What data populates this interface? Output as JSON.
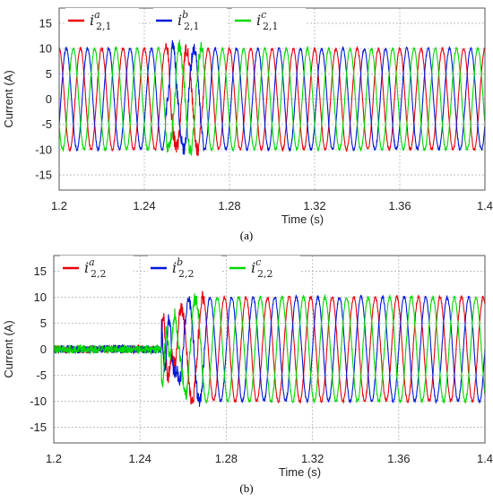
{
  "colors": {
    "a": "#e8000b",
    "b": "#0018d8",
    "c": "#00d800"
  },
  "chart_data": [
    {
      "type": "line",
      "caption": "(a)",
      "xlabel": "Time (s)",
      "ylabel": "Current (A)",
      "xlim": [
        1.2,
        1.4
      ],
      "ylim": [
        -18,
        18
      ],
      "x_ticks": [
        "1.2",
        "1.24",
        "1.28",
        "1.32",
        "1.36",
        "1.4"
      ],
      "y_ticks": [
        "15",
        "10",
        "5",
        "0",
        "-5",
        "-10",
        "-15"
      ],
      "grid": true,
      "legend_position": "top",
      "series": [
        {
          "key": "a",
          "name": "i",
          "sup": "a",
          "sub": "2,1",
          "frequency_hz": 100,
          "amplitude_before": 10,
          "amplitude_after": 10,
          "phase_deg": 90,
          "noise_before": 0.3,
          "noise_after": 0.3
        },
        {
          "key": "b",
          "name": "i",
          "sup": "b",
          "sub": "2,1",
          "frequency_hz": 100,
          "amplitude_before": 10,
          "amplitude_after": 10,
          "phase_deg": -30,
          "noise_before": 0.3,
          "noise_after": 0.3
        },
        {
          "key": "c",
          "name": "i",
          "sup": "c",
          "sub": "2,1",
          "frequency_hz": 100,
          "amplitude_before": 10,
          "amplitude_after": 10,
          "phase_deg": 210,
          "noise_before": 0.3,
          "noise_after": 0.3
        }
      ],
      "transient": {
        "start": 1.25,
        "end": 1.268,
        "peak": 14
      }
    },
    {
      "type": "line",
      "caption": "(b)",
      "xlabel": "Time (s)",
      "ylabel": "Current (A)",
      "xlim": [
        1.2,
        1.4
      ],
      "ylim": [
        -18,
        18
      ],
      "x_ticks": [
        "1.2",
        "1.24",
        "1.28",
        "1.32",
        "1.36",
        "1.4"
      ],
      "y_ticks": [
        "15",
        "10",
        "5",
        "0",
        "-5",
        "-10",
        "-15"
      ],
      "grid": true,
      "legend_position": "top",
      "series": [
        {
          "key": "a",
          "name": "i",
          "sup": "a",
          "sub": "2,2",
          "frequency_hz": 100,
          "amplitude_before": 0,
          "amplitude_after": 10,
          "phase_deg": 120,
          "noise_before": 0.8,
          "noise_after": 0.35
        },
        {
          "key": "b",
          "name": "i",
          "sup": "b",
          "sub": "2,2",
          "frequency_hz": 100,
          "amplitude_before": 0,
          "amplitude_after": 10,
          "phase_deg": 0,
          "noise_before": 0.8,
          "noise_after": 0.35
        },
        {
          "key": "c",
          "name": "i",
          "sup": "c",
          "sub": "2,2",
          "frequency_hz": 100,
          "amplitude_before": 0,
          "amplitude_after": 10,
          "phase_deg": 240,
          "noise_before": 0.8,
          "noise_after": 0.35
        }
      ],
      "transient": {
        "start": 1.25,
        "end": 1.27,
        "peak": 14
      }
    }
  ]
}
